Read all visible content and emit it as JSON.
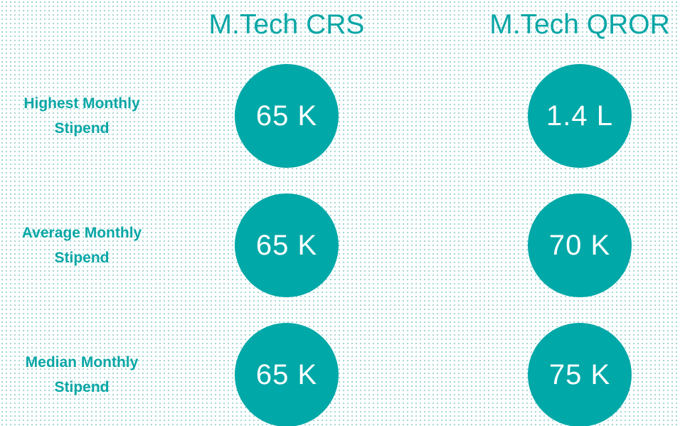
{
  "columns": [
    "M.Tech CRS",
    "M.Tech QROR"
  ],
  "rows": [
    {
      "label": "Highest Monthly Stipend",
      "values": [
        "65 K",
        "1.4 L"
      ]
    },
    {
      "label": "Average Monthly Stipend",
      "values": [
        "65 K",
        "70 K"
      ]
    },
    {
      "label": "Median Monthly Stipend",
      "values": [
        "65 K",
        "75 K"
      ]
    }
  ]
}
